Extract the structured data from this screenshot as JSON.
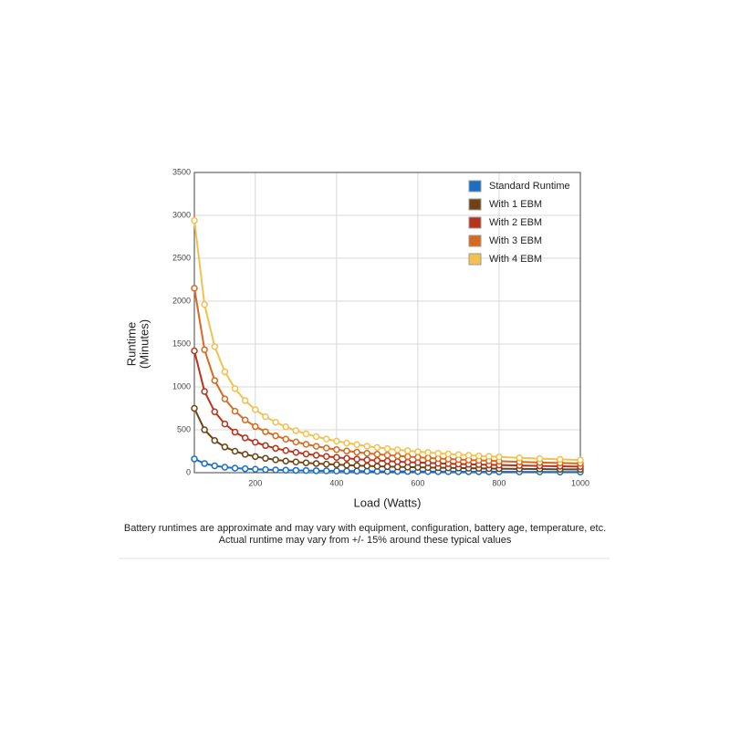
{
  "chart_data": {
    "type": "line",
    "x_label": "Load (Watts)",
    "y_label": [
      "Runtime",
      "(Minutes)"
    ],
    "notes": [
      "Battery runtimes are approximate and may vary with equipment, configuration, battery age, temperature, etc.",
      "Actual runtime may vary from +/- 15% around these typical values"
    ],
    "x": [
      50,
      75,
      100,
      125,
      150,
      175,
      200,
      225,
      250,
      275,
      300,
      325,
      350,
      375,
      400,
      425,
      450,
      475,
      500,
      525,
      550,
      575,
      600,
      625,
      650,
      675,
      700,
      725,
      750,
      775,
      800,
      850,
      900,
      950,
      1000
    ],
    "series": [
      {
        "name": "Standard Runtime",
        "color": "#1a6fc4",
        "values": [
          160,
          107,
          80,
          64,
          53,
          46,
          40,
          36,
          32,
          29,
          27,
          25,
          23,
          21,
          20,
          19,
          18,
          17,
          16,
          15,
          15,
          14,
          13,
          13,
          12,
          12,
          11,
          11,
          11,
          10,
          10,
          9,
          9,
          8,
          8
        ]
      },
      {
        "name": "With 1 EBM",
        "color": "#6e4212",
        "values": [
          750,
          500,
          375,
          300,
          250,
          214,
          188,
          167,
          150,
          136,
          125,
          115,
          107,
          100,
          94,
          88,
          83,
          79,
          75,
          71,
          68,
          65,
          63,
          60,
          58,
          56,
          54,
          52,
          50,
          48,
          47,
          44,
          42,
          39,
          38
        ]
      },
      {
        "name": "With 2 EBM",
        "color": "#b8331c",
        "values": [
          1420,
          947,
          710,
          568,
          473,
          406,
          355,
          316,
          284,
          258,
          237,
          218,
          203,
          189,
          178,
          167,
          158,
          149,
          142,
          135,
          129,
          123,
          118,
          114,
          109,
          105,
          101,
          98,
          95,
          92,
          89,
          84,
          79,
          75,
          71
        ]
      },
      {
        "name": "With 3 EBM",
        "color": "#d9691f",
        "values": [
          2150,
          1433,
          1075,
          860,
          717,
          614,
          538,
          478,
          430,
          391,
          358,
          331,
          307,
          287,
          269,
          253,
          239,
          226,
          215,
          205,
          195,
          187,
          179,
          172,
          165,
          159,
          154,
          148,
          143,
          139,
          134,
          126,
          119,
          113,
          108
        ]
      },
      {
        "name": "With 4 EBM",
        "color": "#f2c150",
        "values": [
          2940,
          1960,
          1470,
          1176,
          980,
          840,
          735,
          653,
          588,
          535,
          490,
          452,
          420,
          392,
          368,
          346,
          327,
          309,
          294,
          280,
          267,
          256,
          245,
          235,
          226,
          218,
          210,
          203,
          196,
          190,
          184,
          173,
          163,
          155,
          147
        ]
      }
    ],
    "xlim": [
      50,
      1000
    ],
    "xticks": [
      200,
      400,
      600,
      800,
      1000
    ],
    "ylim": [
      0,
      3500
    ],
    "yticks": [
      0,
      500,
      1000,
      1500,
      2000,
      2500,
      3000,
      3500
    ],
    "grid": true,
    "legend": "top-right"
  }
}
